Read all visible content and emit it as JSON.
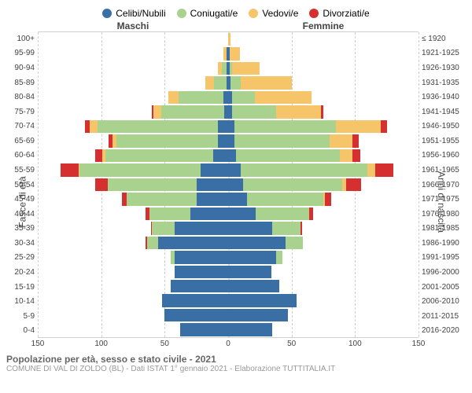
{
  "type": "population-pyramid",
  "legend": [
    {
      "label": "Celibi/Nubili",
      "color": "#3a6fa6"
    },
    {
      "label": "Coniugati/e",
      "color": "#a9d28f"
    },
    {
      "label": "Vedovi/e",
      "color": "#f6c56a"
    },
    {
      "label": "Divorziati/e",
      "color": "#d62f2f"
    }
  ],
  "column_headers": {
    "left": "Maschi",
    "right": "Femmine"
  },
  "axis_titles": {
    "left": "Fasce di età",
    "right": "Anni di nascita"
  },
  "xlim": 150,
  "xticks": [
    150,
    100,
    50,
    0,
    50,
    100,
    150
  ],
  "age_labels": [
    "100+",
    "95-99",
    "90-94",
    "85-89",
    "80-84",
    "75-79",
    "70-74",
    "65-69",
    "60-64",
    "55-59",
    "50-54",
    "45-49",
    "40-44",
    "35-39",
    "30-34",
    "25-29",
    "20-24",
    "15-19",
    "10-14",
    "5-9",
    "0-4"
  ],
  "birth_labels": [
    "≤ 1920",
    "1921-1925",
    "1926-1930",
    "1931-1935",
    "1936-1940",
    "1941-1945",
    "1946-1950",
    "1951-1955",
    "1956-1960",
    "1961-1965",
    "1966-1970",
    "1971-1975",
    "1976-1980",
    "1981-1985",
    "1986-1990",
    "1991-1995",
    "1996-2000",
    "2001-2005",
    "2006-2010",
    "2011-2015",
    "2016-2020"
  ],
  "rows": [
    {
      "m": {
        "c": 0,
        "co": 0,
        "v": 0,
        "d": 0
      },
      "f": {
        "c": 0,
        "co": 0,
        "v": 2,
        "d": 0
      }
    },
    {
      "m": {
        "c": 1,
        "co": 0,
        "v": 3,
        "d": 0
      },
      "f": {
        "c": 1,
        "co": 0,
        "v": 8,
        "d": 0
      }
    },
    {
      "m": {
        "c": 1,
        "co": 4,
        "v": 3,
        "d": 0
      },
      "f": {
        "c": 1,
        "co": 2,
        "v": 22,
        "d": 0
      }
    },
    {
      "m": {
        "c": 1,
        "co": 10,
        "v": 7,
        "d": 0
      },
      "f": {
        "c": 2,
        "co": 8,
        "v": 40,
        "d": 0
      }
    },
    {
      "m": {
        "c": 4,
        "co": 35,
        "v": 8,
        "d": 0
      },
      "f": {
        "c": 3,
        "co": 18,
        "v": 45,
        "d": 0
      }
    },
    {
      "m": {
        "c": 3,
        "co": 50,
        "v": 6,
        "d": 1
      },
      "f": {
        "c": 3,
        "co": 35,
        "v": 35,
        "d": 2
      }
    },
    {
      "m": {
        "c": 8,
        "co": 95,
        "v": 6,
        "d": 4
      },
      "f": {
        "c": 5,
        "co": 80,
        "v": 35,
        "d": 5
      }
    },
    {
      "m": {
        "c": 8,
        "co": 80,
        "v": 3,
        "d": 3
      },
      "f": {
        "c": 5,
        "co": 75,
        "v": 18,
        "d": 5
      }
    },
    {
      "m": {
        "c": 12,
        "co": 85,
        "v": 2,
        "d": 6
      },
      "f": {
        "c": 6,
        "co": 82,
        "v": 10,
        "d": 6
      }
    },
    {
      "m": {
        "c": 22,
        "co": 95,
        "v": 1,
        "d": 14
      },
      "f": {
        "c": 10,
        "co": 100,
        "v": 6,
        "d": 14
      }
    },
    {
      "m": {
        "c": 25,
        "co": 70,
        "v": 0,
        "d": 10
      },
      "f": {
        "c": 12,
        "co": 78,
        "v": 3,
        "d": 12
      }
    },
    {
      "m": {
        "c": 25,
        "co": 55,
        "v": 0,
        "d": 4
      },
      "f": {
        "c": 15,
        "co": 60,
        "v": 1,
        "d": 5
      }
    },
    {
      "m": {
        "c": 30,
        "co": 32,
        "v": 0,
        "d": 3
      },
      "f": {
        "c": 22,
        "co": 42,
        "v": 0,
        "d": 3
      }
    },
    {
      "m": {
        "c": 42,
        "co": 18,
        "v": 0,
        "d": 1
      },
      "f": {
        "c": 35,
        "co": 22,
        "v": 0,
        "d": 1
      }
    },
    {
      "m": {
        "c": 55,
        "co": 9,
        "v": 0,
        "d": 1
      },
      "f": {
        "c": 45,
        "co": 14,
        "v": 0,
        "d": 0
      }
    },
    {
      "m": {
        "c": 42,
        "co": 3,
        "v": 0,
        "d": 0
      },
      "f": {
        "c": 38,
        "co": 5,
        "v": 0,
        "d": 0
      }
    },
    {
      "m": {
        "c": 42,
        "co": 0,
        "v": 0,
        "d": 0
      },
      "f": {
        "c": 34,
        "co": 0,
        "v": 0,
        "d": 0
      }
    },
    {
      "m": {
        "c": 45,
        "co": 0,
        "v": 0,
        "d": 0
      },
      "f": {
        "c": 40,
        "co": 0,
        "v": 0,
        "d": 0
      }
    },
    {
      "m": {
        "c": 52,
        "co": 0,
        "v": 0,
        "d": 0
      },
      "f": {
        "c": 54,
        "co": 0,
        "v": 0,
        "d": 0
      }
    },
    {
      "m": {
        "c": 50,
        "co": 0,
        "v": 0,
        "d": 0
      },
      "f": {
        "c": 47,
        "co": 0,
        "v": 0,
        "d": 0
      }
    },
    {
      "m": {
        "c": 38,
        "co": 0,
        "v": 0,
        "d": 0
      },
      "f": {
        "c": 35,
        "co": 0,
        "v": 0,
        "d": 0
      }
    }
  ],
  "footer": {
    "title": "Popolazione per età, sesso e stato civile - 2021",
    "sub": "COMUNE DI VAL DI ZOLDO (BL) - Dati ISTAT 1° gennaio 2021 - Elaborazione TUTTITALIA.IT"
  },
  "style": {
    "background": "#ffffff",
    "grid_color": "#d0d0d0",
    "label_color": "#444444",
    "label_fontsize": 10,
    "title_fontsize": 12
  }
}
